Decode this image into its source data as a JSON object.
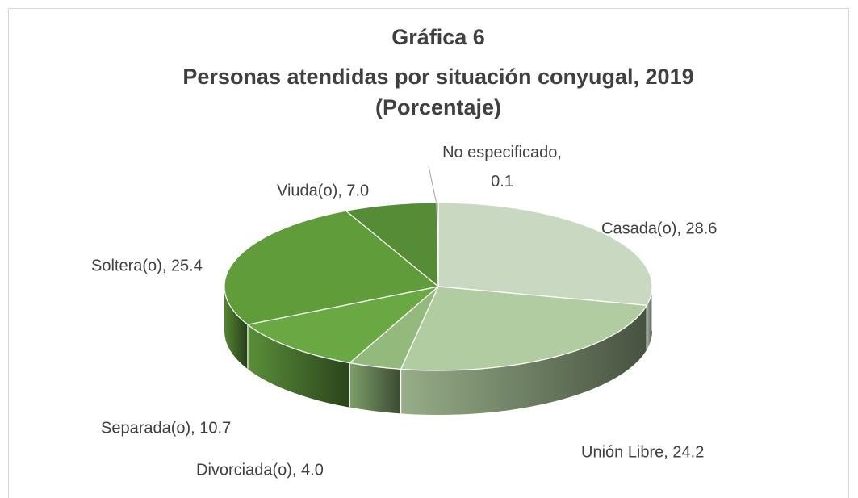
{
  "chart_data": {
    "type": "pie3d",
    "title_lines": [
      "Gráfica 6",
      "Personas atendidas por situación conyugal, 2019",
      "(Porcentaje)"
    ],
    "categories": [
      "Casada(o)",
      "Unión Libre",
      "Divorciada(o)",
      "Separada(o)",
      "Soltera(o)",
      "Viuda(o)",
      "No especificado"
    ],
    "values": [
      28.6,
      24.2,
      4.0,
      10.7,
      25.4,
      7.0,
      0.1
    ],
    "value_labels": [
      "Casada(o), 28.6",
      "Unión Libre, 24.2",
      "Divorciada(o), 4.0",
      "Separada(o), 10.7",
      "Soltera(o), 25.4",
      "Viuda(o), 7.0",
      "No especificado,\n0.1"
    ],
    "colors": [
      "#c9d9c1",
      "#b1cca0",
      "#93ba7c",
      "#6aa844",
      "#619c3b",
      "#568c35",
      "#4f8030"
    ]
  }
}
